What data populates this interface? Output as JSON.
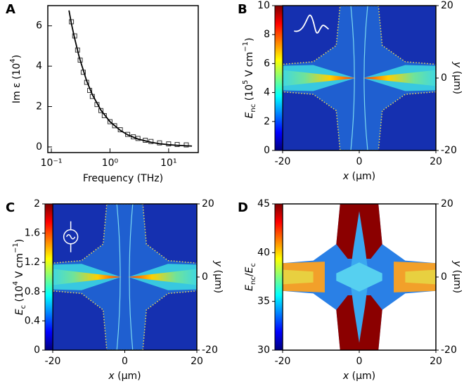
{
  "chart_data": [
    {
      "type": "scatter",
      "label": "A",
      "xlabel": "Frequency (THz)",
      "ylabel": [
        "Im ε (10",
        "4",
        ")"
      ],
      "xlog": true,
      "xlim": [
        0.087,
        32
      ],
      "ylim": [
        -0.28,
        7.0
      ],
      "xticks": [
        {
          "value": 0.1,
          "label": "10⁻¹"
        },
        {
          "value": 1,
          "label": "10⁰"
        },
        {
          "value": 10,
          "label": "10¹"
        }
      ],
      "yticks": [
        0,
        2,
        4,
        6
      ],
      "series": [
        {
          "type": "scatter",
          "marker": "square",
          "color": "#333333",
          "x": [
            0.22,
            0.25,
            0.28,
            0.31,
            0.35,
            0.4,
            0.45,
            0.5,
            0.6,
            0.7,
            0.8,
            1.0,
            1.2,
            1.5,
            2,
            2.5,
            3,
            4,
            5,
            7,
            10,
            14,
            20
          ],
          "values": [
            6.2,
            5.5,
            4.8,
            4.3,
            3.7,
            3.2,
            2.8,
            2.5,
            2.1,
            1.8,
            1.55,
            1.25,
            1.05,
            0.85,
            0.62,
            0.5,
            0.42,
            0.33,
            0.27,
            0.2,
            0.15,
            0.12,
            0.1
          ]
        },
        {
          "type": "line",
          "color": "#000000",
          "x": [
            0.2,
            0.22,
            0.25,
            0.3,
            0.4,
            0.5,
            0.7,
            1,
            1.5,
            2,
            3,
            5,
            7,
            10,
            15,
            20,
            25
          ],
          "values": [
            6.76,
            6.1,
            5.37,
            4.43,
            3.27,
            2.59,
            1.82,
            1.25,
            0.82,
            0.6,
            0.39,
            0.23,
            0.16,
            0.11,
            0.073,
            0.054,
            0.043
          ]
        }
      ]
    },
    {
      "type": "heatmap",
      "label": "B",
      "xlabel": [
        "x",
        " (μm)"
      ],
      "ylabel": [
        "y",
        " (μm)"
      ],
      "xlim": [
        -20,
        20
      ],
      "xticks": [
        -20,
        0,
        20
      ],
      "ylim": [
        -20,
        20
      ],
      "yticks": [
        -20,
        0,
        20
      ],
      "colormap": "jet",
      "colorbar": {
        "label": [
          "E",
          "nc",
          " (10",
          "5",
          " V cm",
          "−1",
          ")"
        ],
        "lim": [
          0,
          10
        ],
        "ticks": [
          0,
          2,
          4,
          6,
          8,
          10
        ]
      }
    },
    {
      "type": "heatmap",
      "label": "C",
      "xlabel": [
        "x",
        " (μm)"
      ],
      "ylabel": [
        "y",
        " (μm)"
      ],
      "xlim": [
        -20,
        20
      ],
      "xticks": [
        -20,
        0,
        20
      ],
      "ylim": [
        -20,
        20
      ],
      "yticks": [
        -20,
        0,
        20
      ],
      "colormap": "jet",
      "colorbar": {
        "label": [
          "E",
          "c",
          " (10",
          "4",
          " V cm",
          "−1",
          ")"
        ],
        "lim": [
          0,
          2
        ],
        "ticks": [
          0,
          0.4,
          0.8,
          1.2,
          1.6,
          2
        ]
      }
    },
    {
      "type": "heatmap",
      "label": "D",
      "xlabel": [
        "x",
        " (μm)"
      ],
      "ylabel": [
        "y",
        " (μm)"
      ],
      "xlim": [
        -20,
        20
      ],
      "xticks": [
        -20,
        0,
        20
      ],
      "ylim": [
        -20,
        20
      ],
      "yticks": [
        -20,
        0,
        20
      ],
      "colormap": "jet",
      "colorbar": {
        "label": [
          "E",
          "nc",
          "/",
          "E",
          "c"
        ],
        "lim": [
          30,
          45
        ],
        "ticks": [
          30,
          35,
          40,
          45
        ]
      }
    }
  ]
}
